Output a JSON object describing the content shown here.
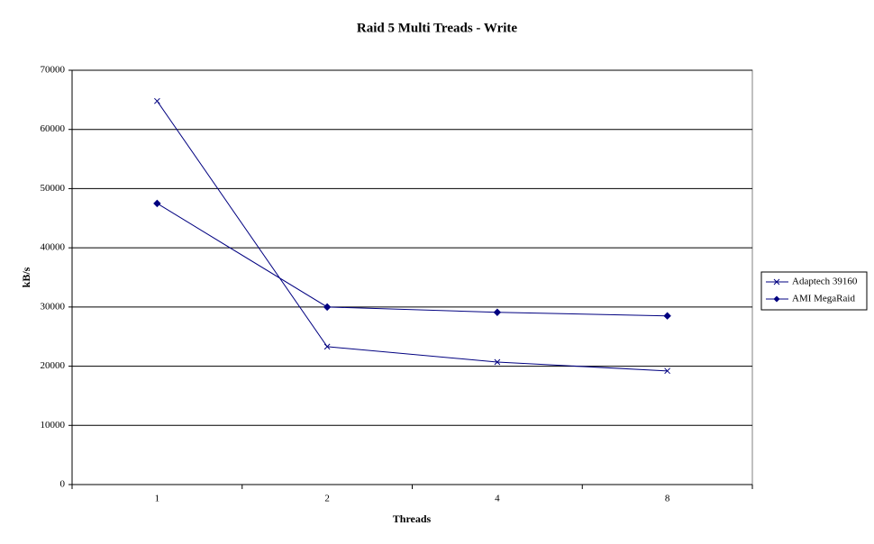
{
  "chart_data": {
    "type": "line",
    "title": "Raid 5 Multi Treads - Write",
    "x_label": "Threads",
    "y_label": "kB/s",
    "categories": [
      "1",
      "2",
      "4",
      "8"
    ],
    "series": [
      {
        "name": "Adaptech 39160",
        "color": "#000080",
        "marker": "x",
        "values": [
          64800,
          23300,
          20700,
          19200
        ]
      },
      {
        "name": "AMI MegaRaid",
        "color": "#000080",
        "marker": "diamond",
        "values": [
          47500,
          30000,
          29100,
          28500
        ]
      }
    ],
    "ylim": [
      0,
      70000
    ],
    "yticks": [
      0,
      10000,
      20000,
      30000,
      40000,
      50000,
      60000,
      70000
    ],
    "grid": true,
    "legend": "right"
  }
}
